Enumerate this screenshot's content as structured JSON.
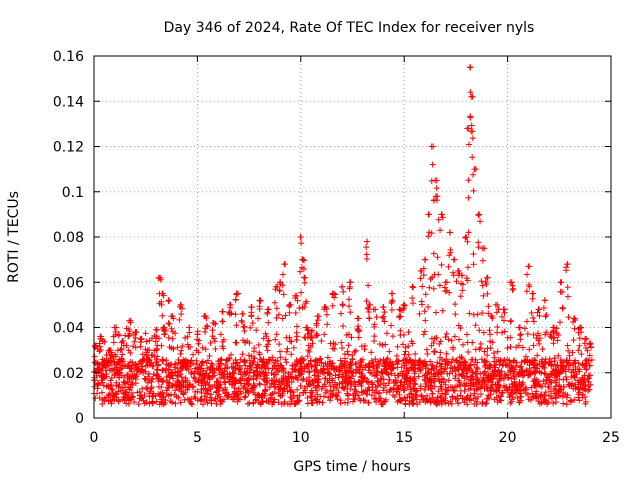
{
  "chart_data": {
    "type": "scatter",
    "title": "Day 346 of 2024, Rate Of TEC Index for receiver nyls",
    "xlabel": "GPS time / hours",
    "ylabel": "ROTI / TECUs",
    "xlim": [
      0,
      25
    ],
    "ylim": [
      0,
      0.16
    ],
    "x_ticks": [
      "0",
      "5",
      "10",
      "15",
      "20",
      "25"
    ],
    "y_ticks": [
      "0",
      "0.02",
      "0.04",
      "0.06",
      "0.08",
      "0.1",
      "0.12",
      "0.14",
      "0.16"
    ],
    "x_tick_values": [
      0,
      5,
      10,
      15,
      20,
      25
    ],
    "y_tick_values": [
      0,
      0.02,
      0.04,
      0.06,
      0.08,
      0.1,
      0.12,
      0.14,
      0.16
    ],
    "grid": true,
    "marker": "+",
    "color": "#ff0000",
    "series": [
      {
        "x": [
          0.1,
          0.2,
          0.3,
          0.4,
          0.6,
          0.8,
          1.0,
          1.2,
          1.4,
          1.7,
          2.0,
          2.3,
          2.6,
          3.0,
          3.2,
          3.3,
          3.4,
          3.6,
          3.8,
          4.2,
          4.6,
          5.0,
          5.4,
          5.8,
          6.2,
          6.6,
          6.9,
          7.2,
          7.6,
          8.0,
          8.4,
          8.8,
          9.0,
          9.2,
          9.5,
          9.8,
          10.0,
          10.1,
          10.2,
          10.3,
          10.5,
          10.8,
          11.2,
          11.6,
          12.0,
          12.4,
          12.8,
          13.2,
          13.3,
          13.6,
          14.0,
          14.4,
          14.8,
          15.0,
          15.4,
          15.8,
          16.0,
          16.2,
          16.4,
          16.5,
          16.6,
          16.8,
          17.0,
          17.2,
          17.4,
          17.6,
          17.8,
          18.0,
          18.1,
          18.2,
          18.3,
          18.4,
          18.6,
          18.8,
          19.0,
          19.2,
          19.5,
          19.8,
          20.2,
          20.6,
          21.0,
          21.2,
          21.5,
          21.8,
          22.2,
          22.6,
          22.9,
          23.2,
          23.5,
          23.8,
          24.0
        ],
        "y": [
          0.032,
          0.022,
          0.036,
          0.018,
          0.025,
          0.03,
          0.04,
          0.02,
          0.034,
          0.043,
          0.038,
          0.035,
          0.03,
          0.039,
          0.062,
          0.055,
          0.04,
          0.052,
          0.045,
          0.05,
          0.04,
          0.037,
          0.045,
          0.042,
          0.047,
          0.05,
          0.055,
          0.046,
          0.049,
          0.052,
          0.048,
          0.058,
          0.06,
          0.068,
          0.05,
          0.054,
          0.08,
          0.07,
          0.062,
          0.04,
          0.038,
          0.045,
          0.049,
          0.055,
          0.058,
          0.06,
          0.044,
          0.078,
          0.05,
          0.048,
          0.049,
          0.055,
          0.048,
          0.05,
          0.058,
          0.065,
          0.07,
          0.09,
          0.12,
          0.105,
          0.098,
          0.09,
          0.06,
          0.082,
          0.07,
          0.065,
          0.063,
          0.08,
          0.128,
          0.155,
          0.142,
          0.11,
          0.09,
          0.075,
          0.062,
          0.045,
          0.05,
          0.048,
          0.06,
          0.04,
          0.067,
          0.055,
          0.048,
          0.052,
          0.04,
          0.06,
          0.068,
          0.044,
          0.04,
          0.035,
          0.033
        ]
      }
    ]
  }
}
